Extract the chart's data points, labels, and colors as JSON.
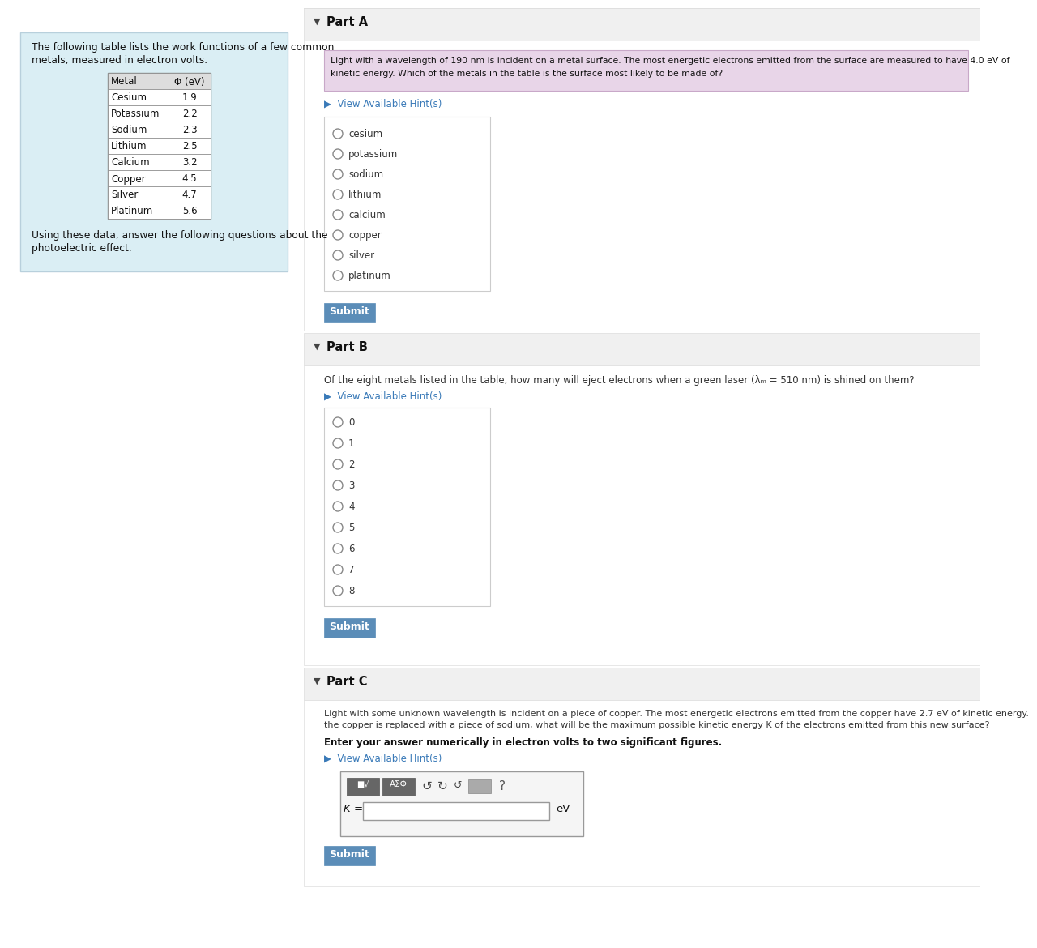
{
  "left_panel_bg": "#daeef4",
  "left_panel_text1a": "The following table lists the work functions of a few common",
  "left_panel_text1b": "metals, measured in electron volts.",
  "left_panel_text2a": "Using these data, answer the following questions about the",
  "left_panel_text2b": "photoelectric effect.",
  "table_headers": [
    "Metal",
    "Φ (eV)"
  ],
  "table_rows": [
    [
      "Cesium",
      "1.9"
    ],
    [
      "Potassium",
      "2.2"
    ],
    [
      "Sodium",
      "2.3"
    ],
    [
      "Lithium",
      "2.5"
    ],
    [
      "Calcium",
      "3.2"
    ],
    [
      "Copper",
      "4.5"
    ],
    [
      "Silver",
      "4.7"
    ],
    [
      "Platinum",
      "5.6"
    ]
  ],
  "partA_header": "Part A",
  "partA_q1": "Light with a wavelength of 190 nm is incident on a metal surface. The most energetic electrons emitted from the surface are measured to have 4.0 eV of",
  "partA_q2": "kinetic energy. Which of the metals in the table is the surface most likely to be made of?",
  "partA_hint": "▶  View Available Hint(s)",
  "partA_choices": [
    "cesium",
    "potassium",
    "sodium",
    "lithium",
    "calcium",
    "copper",
    "silver",
    "platinum"
  ],
  "partB_header": "Part B",
  "partB_q": "Of the eight metals listed in the table, how many will eject electrons when a green laser (λₘ = 510 nm) is shined on them?",
  "partB_hint": "▶  View Available Hint(s)",
  "partB_choices": [
    "0",
    "1",
    "2",
    "3",
    "4",
    "5",
    "6",
    "7",
    "8"
  ],
  "partC_header": "Part C",
  "partC_q1": "Light with some unknown wavelength is incident on a piece of copper. The most energetic electrons emitted from the copper have 2.7 eV of kinetic energy.",
  "partC_q2": "the copper is replaced with a piece of sodium, what will be the maximum possible kinetic energy K of the electrons emitted from this new surface?",
  "partC_bold": "Enter your answer numerically in electron volts to two significant figures.",
  "partC_hint": "▶  View Available Hint(s)",
  "partC_label": "K =",
  "partC_unit": "eV",
  "submit_bg": "#5b8db8",
  "submit_text": "Submit",
  "hint_color": "#3a7ab8",
  "white": "#ffffff",
  "border_color": "#cccccc",
  "gray_header_bg": "#f0f0f0",
  "text_color": "#333333",
  "question_bg": "#e8d5e8",
  "question_border": "#c8a8c8",
  "choices_border": "#cccccc",
  "table_header_bg": "#f0f0f0",
  "left_border": "#b8d0dc"
}
